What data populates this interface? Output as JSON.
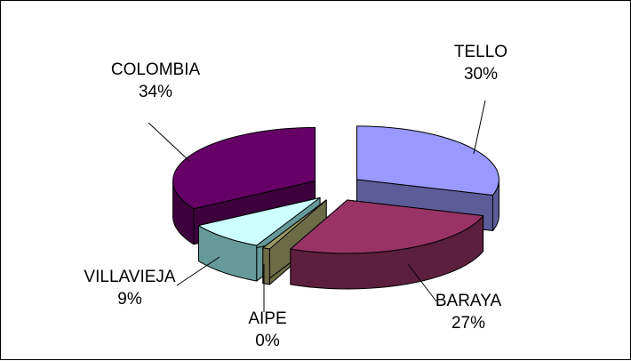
{
  "chart_data": {
    "type": "pie",
    "style": "3d-exploded",
    "title": "",
    "slices": [
      {
        "name": "TELLO",
        "label": "30%",
        "value": 30,
        "color": "#9999ff",
        "dark": "#5c5c99"
      },
      {
        "name": "BARAYA",
        "label": "27%",
        "value": 27,
        "color": "#993366",
        "dark": "#5c1f3d"
      },
      {
        "name": "AIPE",
        "label": "0%",
        "value": 0,
        "color": "#999966",
        "dark": "#6b6b47"
      },
      {
        "name": "VILLAVIEJA",
        "label": "9%",
        "value": 9,
        "color": "#ccffff",
        "dark": "#669999"
      },
      {
        "name": "COLOMBIA",
        "label": "34%",
        "value": 34,
        "color": "#660066",
        "dark": "#3d003d"
      }
    ],
    "legend": "none"
  }
}
